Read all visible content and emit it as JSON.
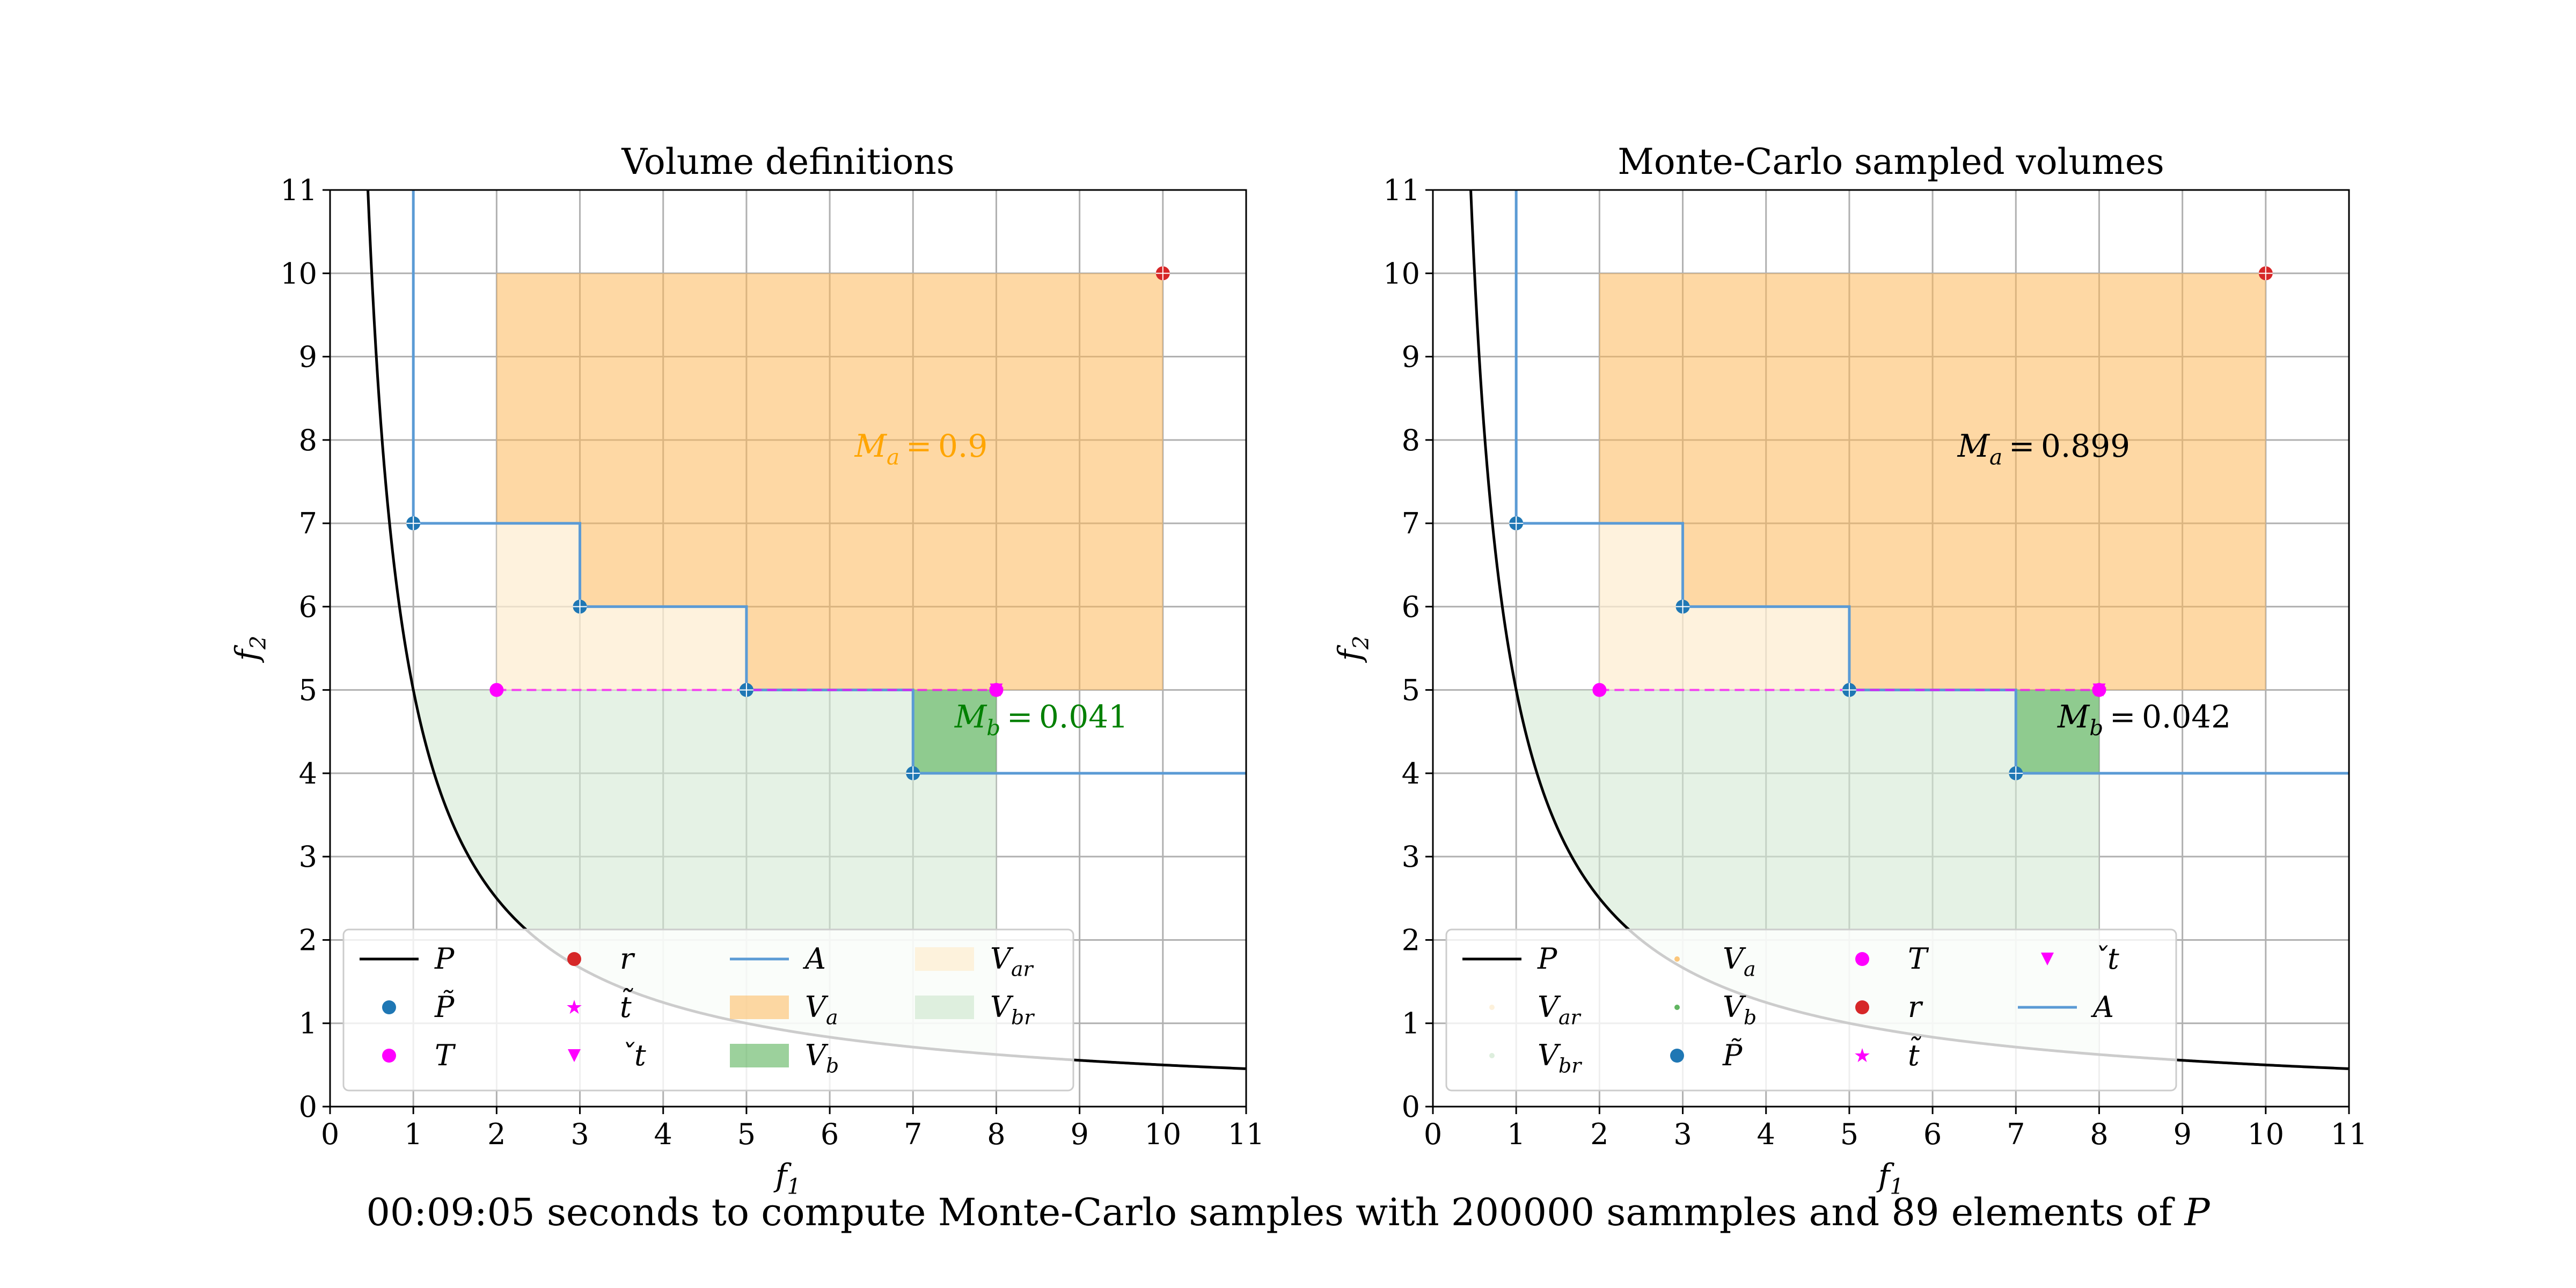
{
  "colors": {
    "front": "#000000",
    "approx": "#1f77b4",
    "approx_line": "#5b9bd5",
    "target": "#ff00ff",
    "reference": "#d62728",
    "Va": "#fdb85a",
    "Vb": "#3aa33a",
    "Var": "#fdeed2",
    "Vbr": "#d4ead4",
    "grid": "#b0b0b0",
    "label_left_a": "#ffa500",
    "label_left_b": "#008000",
    "label_right": "#000000"
  },
  "caption": {
    "text": "00:09:05 seconds to compute Monte-Carlo samples with 200000 sammples and 89 elements of ",
    "symbol": "P"
  },
  "chart_data": [
    {
      "type": "scatter",
      "title": "Volume definitions",
      "xlabel": "f₁",
      "ylabel": "f₂",
      "xlim": [
        0,
        11
      ],
      "ylim": [
        0,
        11
      ],
      "xticks": [
        0,
        1,
        2,
        3,
        4,
        5,
        6,
        7,
        8,
        9,
        10,
        11
      ],
      "yticks": [
        0,
        1,
        2,
        3,
        4,
        5,
        6,
        7,
        8,
        9,
        10,
        11
      ],
      "grid": true,
      "legend_position": "lower-left",
      "legend_columns": 4,
      "legend": [
        "P",
        "P̃",
        "T",
        "r",
        "t̃",
        "ˇt",
        "A",
        "Va",
        "Vb",
        "Var",
        "Vbr"
      ],
      "front_P": {
        "equation": "f2 = 5 / f1",
        "x_range": [
          0.45,
          11
        ]
      },
      "approx_points": [
        [
          1,
          7
        ],
        [
          3,
          6
        ],
        [
          5,
          5
        ],
        [
          7,
          4
        ]
      ],
      "target_points": [
        [
          2,
          5
        ],
        [
          8,
          5
        ]
      ],
      "reference_point": [
        10,
        10
      ],
      "tilde_t": [
        8,
        5
      ],
      "check_t": [
        8,
        5
      ],
      "attainment_front": [
        [
          1,
          11
        ],
        [
          1,
          7
        ],
        [
          3,
          7
        ],
        [
          3,
          6
        ],
        [
          5,
          6
        ],
        [
          5,
          5
        ],
        [
          7,
          5
        ],
        [
          7,
          4
        ],
        [
          11,
          4
        ]
      ],
      "Va_region": [
        [
          2,
          7
        ],
        [
          3,
          7
        ],
        [
          3,
          6
        ],
        [
          5,
          6
        ],
        [
          5,
          5
        ],
        [
          10,
          5
        ],
        [
          10,
          10
        ],
        [
          2,
          10
        ]
      ],
      "Vb_region": [
        [
          7,
          5
        ],
        [
          7,
          4
        ],
        [
          8,
          4
        ],
        [
          8,
          5
        ]
      ],
      "Var_region": [
        [
          2,
          5
        ],
        [
          5,
          5
        ],
        [
          5,
          6
        ],
        [
          3,
          6
        ],
        [
          3,
          7
        ],
        [
          2,
          7
        ]
      ],
      "Vbr_region": {
        "x": [
          1,
          8
        ],
        "y_top": 5,
        "lower_bound": "P"
      },
      "annotations": [
        {
          "label": "Ma",
          "value": "0.9",
          "x": 6.3,
          "y": 7.8,
          "color": "orange"
        },
        {
          "label": "Mb",
          "value": "0.041",
          "x": 7.5,
          "y": 4.55,
          "color": "green"
        }
      ]
    },
    {
      "type": "scatter",
      "title": "Monte-Carlo sampled volumes",
      "xlabel": "f₁",
      "ylabel": "f₂",
      "xlim": [
        0,
        11
      ],
      "ylim": [
        0,
        11
      ],
      "xticks": [
        0,
        1,
        2,
        3,
        4,
        5,
        6,
        7,
        8,
        9,
        10,
        11
      ],
      "yticks": [
        0,
        1,
        2,
        3,
        4,
        5,
        6,
        7,
        8,
        9,
        10,
        11
      ],
      "grid": true,
      "legend_position": "lower-left",
      "legend_columns": 4,
      "legend": [
        "P",
        "Var",
        "Vbr",
        "Va",
        "Vb",
        "P̃",
        "T",
        "r",
        "t̃",
        "ˇt",
        "A"
      ],
      "front_P": {
        "equation": "f2 = 5 / f1",
        "x_range": [
          0.45,
          11
        ]
      },
      "approx_points": [
        [
          1,
          7
        ],
        [
          3,
          6
        ],
        [
          5,
          5
        ],
        [
          7,
          4
        ]
      ],
      "target_points": [
        [
          2,
          5
        ],
        [
          8,
          5
        ]
      ],
      "reference_point": [
        10,
        10
      ],
      "tilde_t": [
        8,
        5
      ],
      "check_t": [
        8,
        5
      ],
      "attainment_front": [
        [
          1,
          11
        ],
        [
          1,
          7
        ],
        [
          3,
          7
        ],
        [
          3,
          6
        ],
        [
          5,
          6
        ],
        [
          5,
          5
        ],
        [
          7,
          5
        ],
        [
          7,
          4
        ],
        [
          11,
          4
        ]
      ],
      "Va_region": [
        [
          2,
          7
        ],
        [
          3,
          7
        ],
        [
          3,
          6
        ],
        [
          5,
          6
        ],
        [
          5,
          5
        ],
        [
          10,
          5
        ],
        [
          10,
          10
        ],
        [
          2,
          10
        ]
      ],
      "Vb_region": [
        [
          7,
          5
        ],
        [
          7,
          4
        ],
        [
          8,
          4
        ],
        [
          8,
          5
        ]
      ],
      "Var_region": [
        [
          2,
          5
        ],
        [
          5,
          5
        ],
        [
          5,
          6
        ],
        [
          3,
          6
        ],
        [
          3,
          7
        ],
        [
          2,
          7
        ]
      ],
      "Vbr_region": {
        "x": [
          1,
          8
        ],
        "y_top": 5,
        "lower_bound": "P"
      },
      "annotations": [
        {
          "label": "Ma",
          "value": "0.899",
          "x": 6.3,
          "y": 7.8,
          "color": "black"
        },
        {
          "label": "Mb",
          "value": "0.042",
          "x": 7.5,
          "y": 4.55,
          "color": "black"
        }
      ]
    }
  ]
}
